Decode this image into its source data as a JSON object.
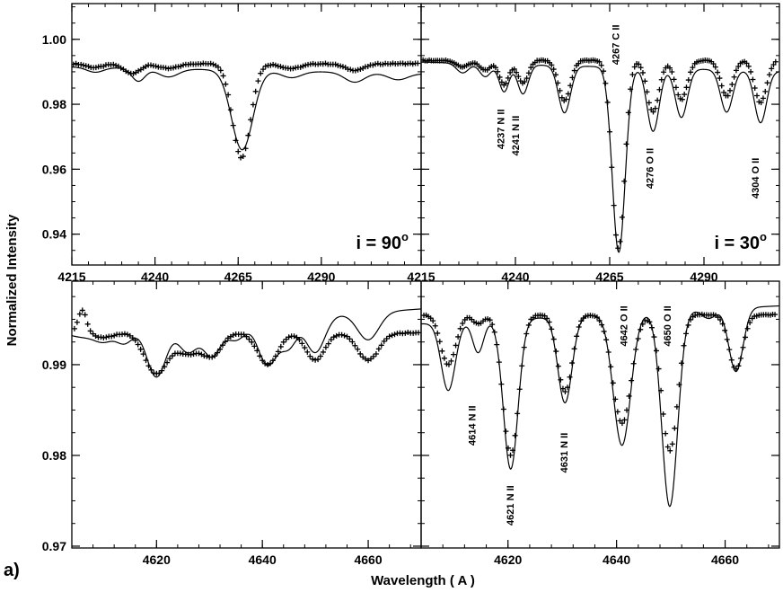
{
  "figure": {
    "panel_tag": "a)",
    "x_axis_title": "Wavelength ( A )",
    "y_axis_title": "Normalized Intensity"
  },
  "chart_data": [
    {
      "id": "top-left",
      "type": "line",
      "inclination_label": "i = 90",
      "inclination_sup": "o",
      "xlim": [
        4215,
        4320
      ],
      "ylim": [
        0.9305,
        1.011
      ],
      "xticks": [
        4215,
        4240,
        4265,
        4290
      ],
      "yticks": [
        0.94,
        0.96,
        0.98,
        1.0
      ],
      "ytick_labels": [
        "0.94",
        "0.96",
        "0.98",
        "1.00"
      ],
      "show_xtick_labels": true,
      "show_ytick_labels": true,
      "line_labels": [],
      "model": {
        "continuum": 0.9915,
        "features": [
          {
            "center": 4222,
            "depth": 0.0015,
            "width": 2.5
          },
          {
            "center": 4235,
            "depth": 0.004,
            "width": 2.0
          },
          {
            "center": 4244,
            "depth": 0.0025,
            "width": 3.0
          },
          {
            "center": 4266.2,
            "depth": 0.0245,
            "width": 3.2
          },
          {
            "center": 4281,
            "depth": 0.002,
            "width": 3.0
          },
          {
            "center": 4300,
            "depth": 0.003,
            "width": 3.0
          },
          {
            "center": 4313,
            "depth": 0.002,
            "width": 3.0
          }
        ],
        "slope": -2e-05
      },
      "observed": {
        "x_start": 4215.5,
        "x_end": 4319.5,
        "step": 0.75,
        "continuum": 0.9925,
        "features": [
          {
            "center": 4222,
            "depth": 0.0012,
            "width": 2.5
          },
          {
            "center": 4233,
            "depth": 0.003,
            "width": 2.5
          },
          {
            "center": 4244,
            "depth": 0.0015,
            "width": 3.0
          },
          {
            "center": 4266.0,
            "depth": 0.029,
            "width": 2.7
          },
          {
            "center": 4281,
            "depth": 0.0015,
            "width": 3.0
          },
          {
            "center": 4300,
            "depth": 0.002,
            "width": 3.0
          }
        ]
      }
    },
    {
      "id": "top-right",
      "type": "line",
      "inclination_label": "i = 30",
      "inclination_sup": "o",
      "xlim": [
        4215,
        4310
      ],
      "ylim": [
        0.9305,
        1.011
      ],
      "xticks": [
        4215,
        4240,
        4265,
        4290
      ],
      "yticks": [
        0.94,
        0.96,
        0.98,
        1.0
      ],
      "show_xtick_labels": true,
      "show_ytick_labels": false,
      "line_labels": [
        {
          "text": "4237 N II",
          "wavelength": 4237,
          "intensity": 0.9785
        },
        {
          "text": "4241 N II",
          "wavelength": 4241,
          "intensity": 0.9765
        },
        {
          "text": "4267 C II",
          "wavelength": 4267.5,
          "intensity": 1.0045
        },
        {
          "text": "4276 O II",
          "wavelength": 4276.5,
          "intensity": 0.9665
        },
        {
          "text": "4304 O II",
          "wavelength": 4304.5,
          "intensity": 0.9635
        }
      ],
      "model": {
        "continuum": 0.993,
        "features": [
          {
            "center": 4226,
            "depth": 0.003,
            "width": 1.6
          },
          {
            "center": 4232,
            "depth": 0.004,
            "width": 1.5
          },
          {
            "center": 4237,
            "depth": 0.0085,
            "width": 1.3
          },
          {
            "center": 4242,
            "depth": 0.009,
            "width": 1.4
          },
          {
            "center": 4253,
            "depth": 0.0145,
            "width": 1.6
          },
          {
            "center": 4267.4,
            "depth": 0.057,
            "width": 1.7
          },
          {
            "center": 4276.5,
            "depth": 0.0195,
            "width": 1.6
          },
          {
            "center": 4284,
            "depth": 0.015,
            "width": 1.6
          },
          {
            "center": 4296,
            "depth": 0.013,
            "width": 1.6
          },
          {
            "center": 4305,
            "depth": 0.016,
            "width": 1.6
          }
        ],
        "slope": -3e-05
      },
      "observed": {
        "x_start": 4215.5,
        "x_end": 4309.5,
        "step": 0.55,
        "continuum": 0.9935,
        "features": [
          {
            "center": 4226,
            "depth": 0.002,
            "width": 1.6
          },
          {
            "center": 4232,
            "depth": 0.003,
            "width": 1.5
          },
          {
            "center": 4237,
            "depth": 0.0075,
            "width": 1.3
          },
          {
            "center": 4242,
            "depth": 0.007,
            "width": 1.4
          },
          {
            "center": 4253,
            "depth": 0.0125,
            "width": 1.6
          },
          {
            "center": 4267.3,
            "depth": 0.058,
            "width": 1.65
          },
          {
            "center": 4276.5,
            "depth": 0.016,
            "width": 1.6
          },
          {
            "center": 4284,
            "depth": 0.012,
            "width": 1.6
          },
          {
            "center": 4296,
            "depth": 0.011,
            "width": 1.6
          },
          {
            "center": 4305,
            "depth": 0.013,
            "width": 1.6
          }
        ]
      }
    },
    {
      "id": "bottom-left",
      "type": "line",
      "inclination_label": "",
      "xlim": [
        4604,
        4670
      ],
      "ylim": [
        0.9698,
        0.9992
      ],
      "xticks": [
        4620,
        4640,
        4660
      ],
      "yticks": [
        0.97,
        0.98,
        0.99
      ],
      "ytick_labels": [
        "0.97",
        "0.98",
        "0.99"
      ],
      "show_xtick_labels": true,
      "show_ytick_labels": true,
      "line_labels": [],
      "model": {
        "continuum": 0.9935,
        "features": [
          {
            "center": 4606,
            "depth": 0.0005,
            "width": 2.0
          },
          {
            "center": 4610,
            "depth": 0.0012,
            "width": 1.8
          },
          {
            "center": 4614,
            "depth": 0.0015,
            "width": 1.5
          },
          {
            "center": 4620,
            "depth": 0.0055,
            "width": 1.8
          },
          {
            "center": 4626,
            "depth": 0.003,
            "width": 1.8
          },
          {
            "center": 4630.5,
            "depth": 0.0035,
            "width": 1.6
          },
          {
            "center": 4635,
            "depth": 0.002,
            "width": 1.8
          },
          {
            "center": 4641,
            "depth": 0.005,
            "width": 1.8
          },
          {
            "center": 4645,
            "depth": 0.003,
            "width": 1.5
          },
          {
            "center": 4650,
            "depth": 0.004,
            "width": 1.8
          },
          {
            "center": 4660,
            "depth": 0.003,
            "width": 2.0
          }
        ],
        "slope": 4e-05
      },
      "observed": {
        "x_start": 4604.5,
        "x_end": 4669.5,
        "step": 0.5,
        "continuum": 0.9935,
        "features": [
          {
            "center": 4606,
            "depth": -0.0025,
            "width": 0.8
          },
          {
            "center": 4610,
            "depth": 0.0005,
            "width": 1.8
          },
          {
            "center": 4620,
            "depth": 0.0045,
            "width": 2.2
          },
          {
            "center": 4626,
            "depth": 0.0022,
            "width": 2.0
          },
          {
            "center": 4630.5,
            "depth": 0.0025,
            "width": 1.8
          },
          {
            "center": 4641,
            "depth": 0.0035,
            "width": 1.9
          },
          {
            "center": 4650,
            "depth": 0.003,
            "width": 1.8
          },
          {
            "center": 4660,
            "depth": 0.003,
            "width": 2.0
          }
        ]
      }
    },
    {
      "id": "bottom-right",
      "type": "line",
      "inclination_label": "",
      "xlim": [
        4604,
        4670
      ],
      "ylim": [
        0.9698,
        0.9992
      ],
      "xticks": [
        4620,
        4640,
        4660
      ],
      "yticks": [
        0.97,
        0.98,
        0.99
      ],
      "show_xtick_labels": true,
      "show_ytick_labels": false,
      "line_labels": [
        {
          "text": "4614 N II",
          "wavelength": 4614,
          "intensity": 0.9855
        },
        {
          "text": "4621 N II",
          "wavelength": 4621,
          "intensity": 0.9767
        },
        {
          "text": "4631 N II",
          "wavelength": 4631,
          "intensity": 0.9825
        },
        {
          "text": "4642 O II",
          "wavelength": 4642,
          "intensity": 0.9965
        },
        {
          "text": "4650 O II",
          "wavelength": 4650,
          "intensity": 0.9965
        }
      ],
      "model": {
        "continuum": 0.9945,
        "features": [
          {
            "center": 4609,
            "depth": 0.0075,
            "width": 1.3
          },
          {
            "center": 4614.5,
            "depth": 0.0035,
            "width": 1.0
          },
          {
            "center": 4620.5,
            "depth": 0.0165,
            "width": 1.35
          },
          {
            "center": 4630.5,
            "depth": 0.0095,
            "width": 1.3
          },
          {
            "center": 4641,
            "depth": 0.0145,
            "width": 1.6
          },
          {
            "center": 4649.8,
            "depth": 0.0215,
            "width": 1.45
          },
          {
            "center": 4657,
            "depth": 0.001,
            "width": 1.2
          },
          {
            "center": 4662,
            "depth": 0.007,
            "width": 1.3
          }
        ],
        "slope": 3e-05
      },
      "observed": {
        "x_start": 4604.5,
        "x_end": 4669.5,
        "step": 0.42,
        "continuum": 0.9955,
        "features": [
          {
            "center": 4609,
            "depth": 0.0055,
            "width": 1.4
          },
          {
            "center": 4614.5,
            "depth": 0.001,
            "width": 1.0
          },
          {
            "center": 4620.5,
            "depth": 0.0155,
            "width": 1.45
          },
          {
            "center": 4630.5,
            "depth": 0.0085,
            "width": 1.35
          },
          {
            "center": 4641,
            "depth": 0.012,
            "width": 1.7
          },
          {
            "center": 4649.8,
            "depth": 0.015,
            "width": 1.5
          },
          {
            "center": 4662,
            "depth": 0.006,
            "width": 1.3
          }
        ]
      }
    }
  ]
}
